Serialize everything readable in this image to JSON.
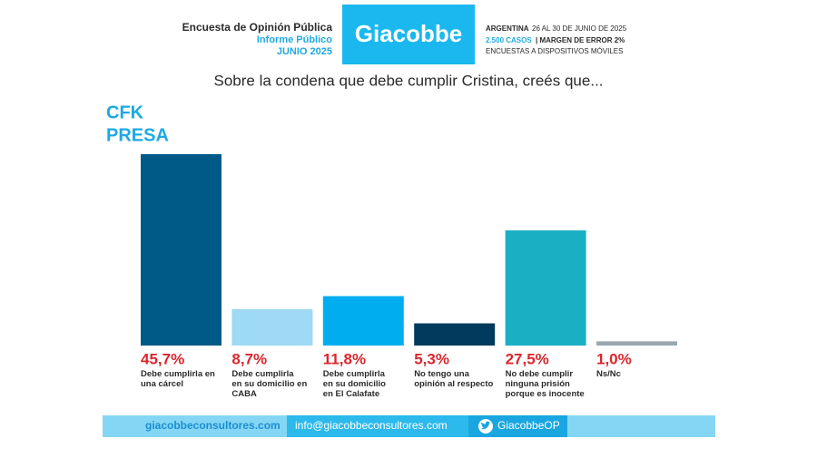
{
  "header": {
    "survey": "Encuesta de Opinión Pública",
    "report": "Informe Público",
    "date": "JUNIO 2025",
    "logo": "Giacobbe",
    "country": "ARGENTINA",
    "dates": "26 AL 30 DE JUNIO DE 2025",
    "cases": "2.500 CASOS",
    "margin": "| MARGEN DE ERROR 2%",
    "method": "ENCUESTAS A DISPOSITIVOS MÓVILES"
  },
  "chart_data": {
    "type": "bar",
    "title": "Sobre la condena que debe cumplir Cristina, creés que...",
    "subtitle": [
      "CFK",
      "PRESA"
    ],
    "categories": [
      "Debe cumplirla en\nuna cárcel",
      "Debe cumplirla\nen su domicilio en\nCABA",
      "Debe cumplirla\nen su domicilio\nen El Calafate",
      "No tengo una\nopinión al respecto",
      "No debe cumplir\nninguna prisión\nporque es inocente",
      "Ns/Nc"
    ],
    "values": [
      45.7,
      8.7,
      11.8,
      5.3,
      27.5,
      1.0
    ],
    "value_labels": [
      "45,7%",
      "8,7%",
      "11,8%",
      "5,3%",
      "27,5%",
      "1,0%"
    ],
    "colors": [
      "#005a87",
      "#9ed9f5",
      "#00aeef",
      "#003a5c",
      "#1ab0c4",
      "#9aa8b0"
    ]
  },
  "footer": {
    "web": "giacobbeconsultores.com",
    "email": "info@giacobbeconsultores.com",
    "twitter": "GiacobbeOP"
  }
}
